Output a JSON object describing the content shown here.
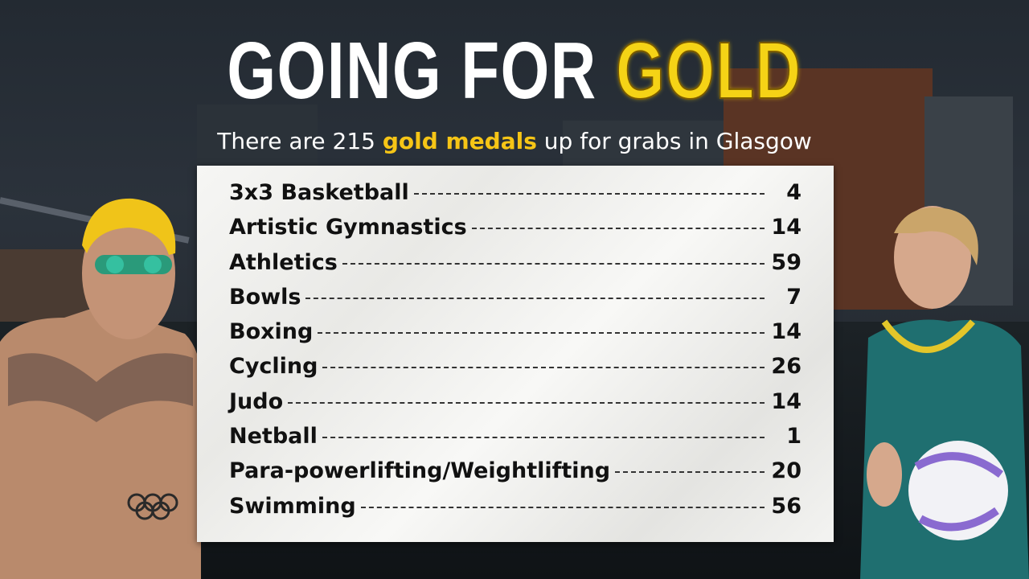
{
  "title": {
    "part1": "GOING FOR ",
    "part2": "GOLD"
  },
  "subtitle": {
    "before": "There are 215 ",
    "highlight": "gold medals",
    "after": " up for grabs in Glasgow"
  },
  "sports": [
    {
      "name": "3x3 Basketball",
      "count": "4"
    },
    {
      "name": "Artistic Gymnastics",
      "count": "14"
    },
    {
      "name": "Athletics",
      "count": "59"
    },
    {
      "name": "Bowls",
      "count": "7"
    },
    {
      "name": "Boxing",
      "count": "14"
    },
    {
      "name": "Cycling",
      "count": "26"
    },
    {
      "name": "Judo",
      "count": "14"
    },
    {
      "name": "Netball",
      "count": "1"
    },
    {
      "name": "Para-powerlifting/Weightlifting",
      "count": "20"
    },
    {
      "name": "Swimming",
      "count": "56"
    }
  ],
  "colors": {
    "gold": "#f5d316",
    "highlight": "#f6c516",
    "text_dark": "#111111"
  }
}
